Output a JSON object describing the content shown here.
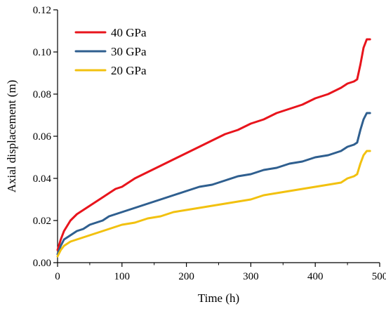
{
  "chart_data": {
    "type": "line",
    "title": "",
    "xlabel": "Time (h)",
    "ylabel": "Axial displacement (m)",
    "xlim": [
      0,
      500
    ],
    "ylim": [
      0,
      0.12
    ],
    "xticks": [
      0,
      100,
      200,
      300,
      400,
      500
    ],
    "yticks": [
      0.0,
      0.02,
      0.04,
      0.06,
      0.08,
      0.1,
      0.12
    ],
    "ytick_labels": [
      "0.00",
      "0.02",
      "0.04",
      "0.06",
      "0.08",
      "0.10",
      "0.12"
    ],
    "grid": false,
    "legend_position": "top-left",
    "series": [
      {
        "name": "40 GPa",
        "color": "#e8141c",
        "x": [
          0,
          5,
          10,
          20,
          30,
          40,
          50,
          60,
          70,
          80,
          90,
          100,
          120,
          140,
          160,
          180,
          200,
          220,
          240,
          260,
          280,
          300,
          320,
          340,
          360,
          380,
          400,
          420,
          440,
          450,
          460,
          465,
          470,
          475,
          480,
          485
        ],
        "y": [
          0.006,
          0.011,
          0.015,
          0.02,
          0.023,
          0.025,
          0.027,
          0.029,
          0.031,
          0.033,
          0.035,
          0.036,
          0.04,
          0.043,
          0.046,
          0.049,
          0.052,
          0.055,
          0.058,
          0.061,
          0.063,
          0.066,
          0.068,
          0.071,
          0.073,
          0.075,
          0.078,
          0.08,
          0.083,
          0.085,
          0.086,
          0.087,
          0.094,
          0.102,
          0.106,
          0.106
        ]
      },
      {
        "name": "30 GPa",
        "color": "#2f5f8f",
        "x": [
          0,
          5,
          10,
          20,
          30,
          40,
          50,
          60,
          70,
          80,
          90,
          100,
          120,
          140,
          160,
          180,
          200,
          220,
          240,
          260,
          280,
          300,
          320,
          340,
          360,
          380,
          400,
          420,
          440,
          450,
          460,
          465,
          470,
          475,
          480,
          485
        ],
        "y": [
          0.004,
          0.008,
          0.011,
          0.013,
          0.015,
          0.016,
          0.018,
          0.019,
          0.02,
          0.022,
          0.023,
          0.024,
          0.026,
          0.028,
          0.03,
          0.032,
          0.034,
          0.036,
          0.037,
          0.039,
          0.041,
          0.042,
          0.044,
          0.045,
          0.047,
          0.048,
          0.05,
          0.051,
          0.053,
          0.055,
          0.056,
          0.057,
          0.063,
          0.068,
          0.071,
          0.071
        ]
      },
      {
        "name": "20 GPa",
        "color": "#f2c10f",
        "x": [
          0,
          5,
          10,
          20,
          30,
          40,
          50,
          60,
          70,
          80,
          90,
          100,
          120,
          140,
          160,
          180,
          200,
          220,
          240,
          260,
          280,
          300,
          320,
          340,
          360,
          380,
          400,
          420,
          440,
          450,
          460,
          465,
          470,
          475,
          480,
          485
        ],
        "y": [
          0.003,
          0.006,
          0.008,
          0.01,
          0.011,
          0.012,
          0.013,
          0.014,
          0.015,
          0.016,
          0.017,
          0.018,
          0.019,
          0.021,
          0.022,
          0.024,
          0.025,
          0.026,
          0.027,
          0.028,
          0.029,
          0.03,
          0.032,
          0.033,
          0.034,
          0.035,
          0.036,
          0.037,
          0.038,
          0.04,
          0.041,
          0.042,
          0.047,
          0.051,
          0.053,
          0.053
        ]
      }
    ]
  }
}
